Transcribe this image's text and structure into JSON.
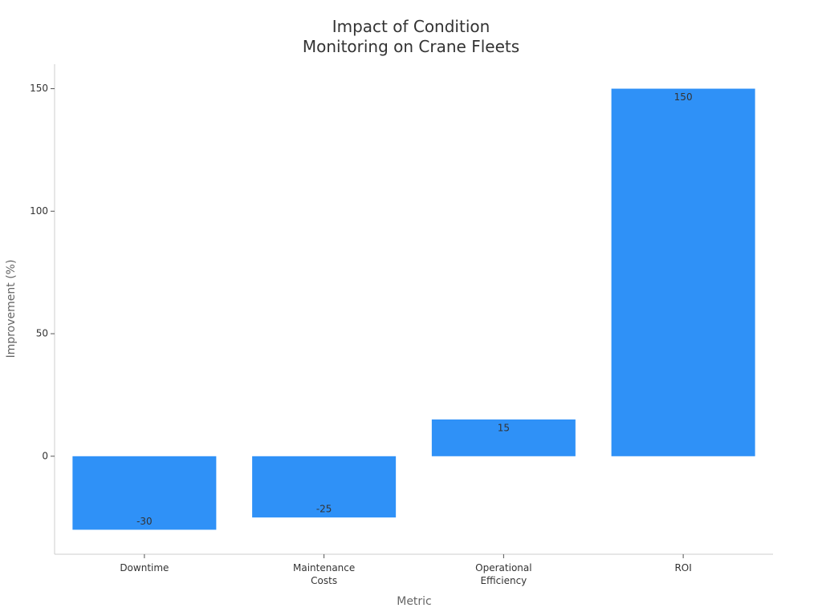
{
  "chart_data": {
    "type": "bar",
    "title": "Impact of Condition Monitoring on Crane Fleets",
    "x_label": "Metric",
    "y_label": "Improvement (%)",
    "categories": [
      "Downtime",
      "Maintenance Costs",
      "Operational Efficiency",
      "ROI"
    ],
    "values": [
      -30,
      -25,
      15,
      150
    ],
    "color": "#2f91f7",
    "ylim": [
      -40,
      160
    ],
    "yticks": [
      0,
      50,
      100,
      150
    ],
    "grid": false
  }
}
